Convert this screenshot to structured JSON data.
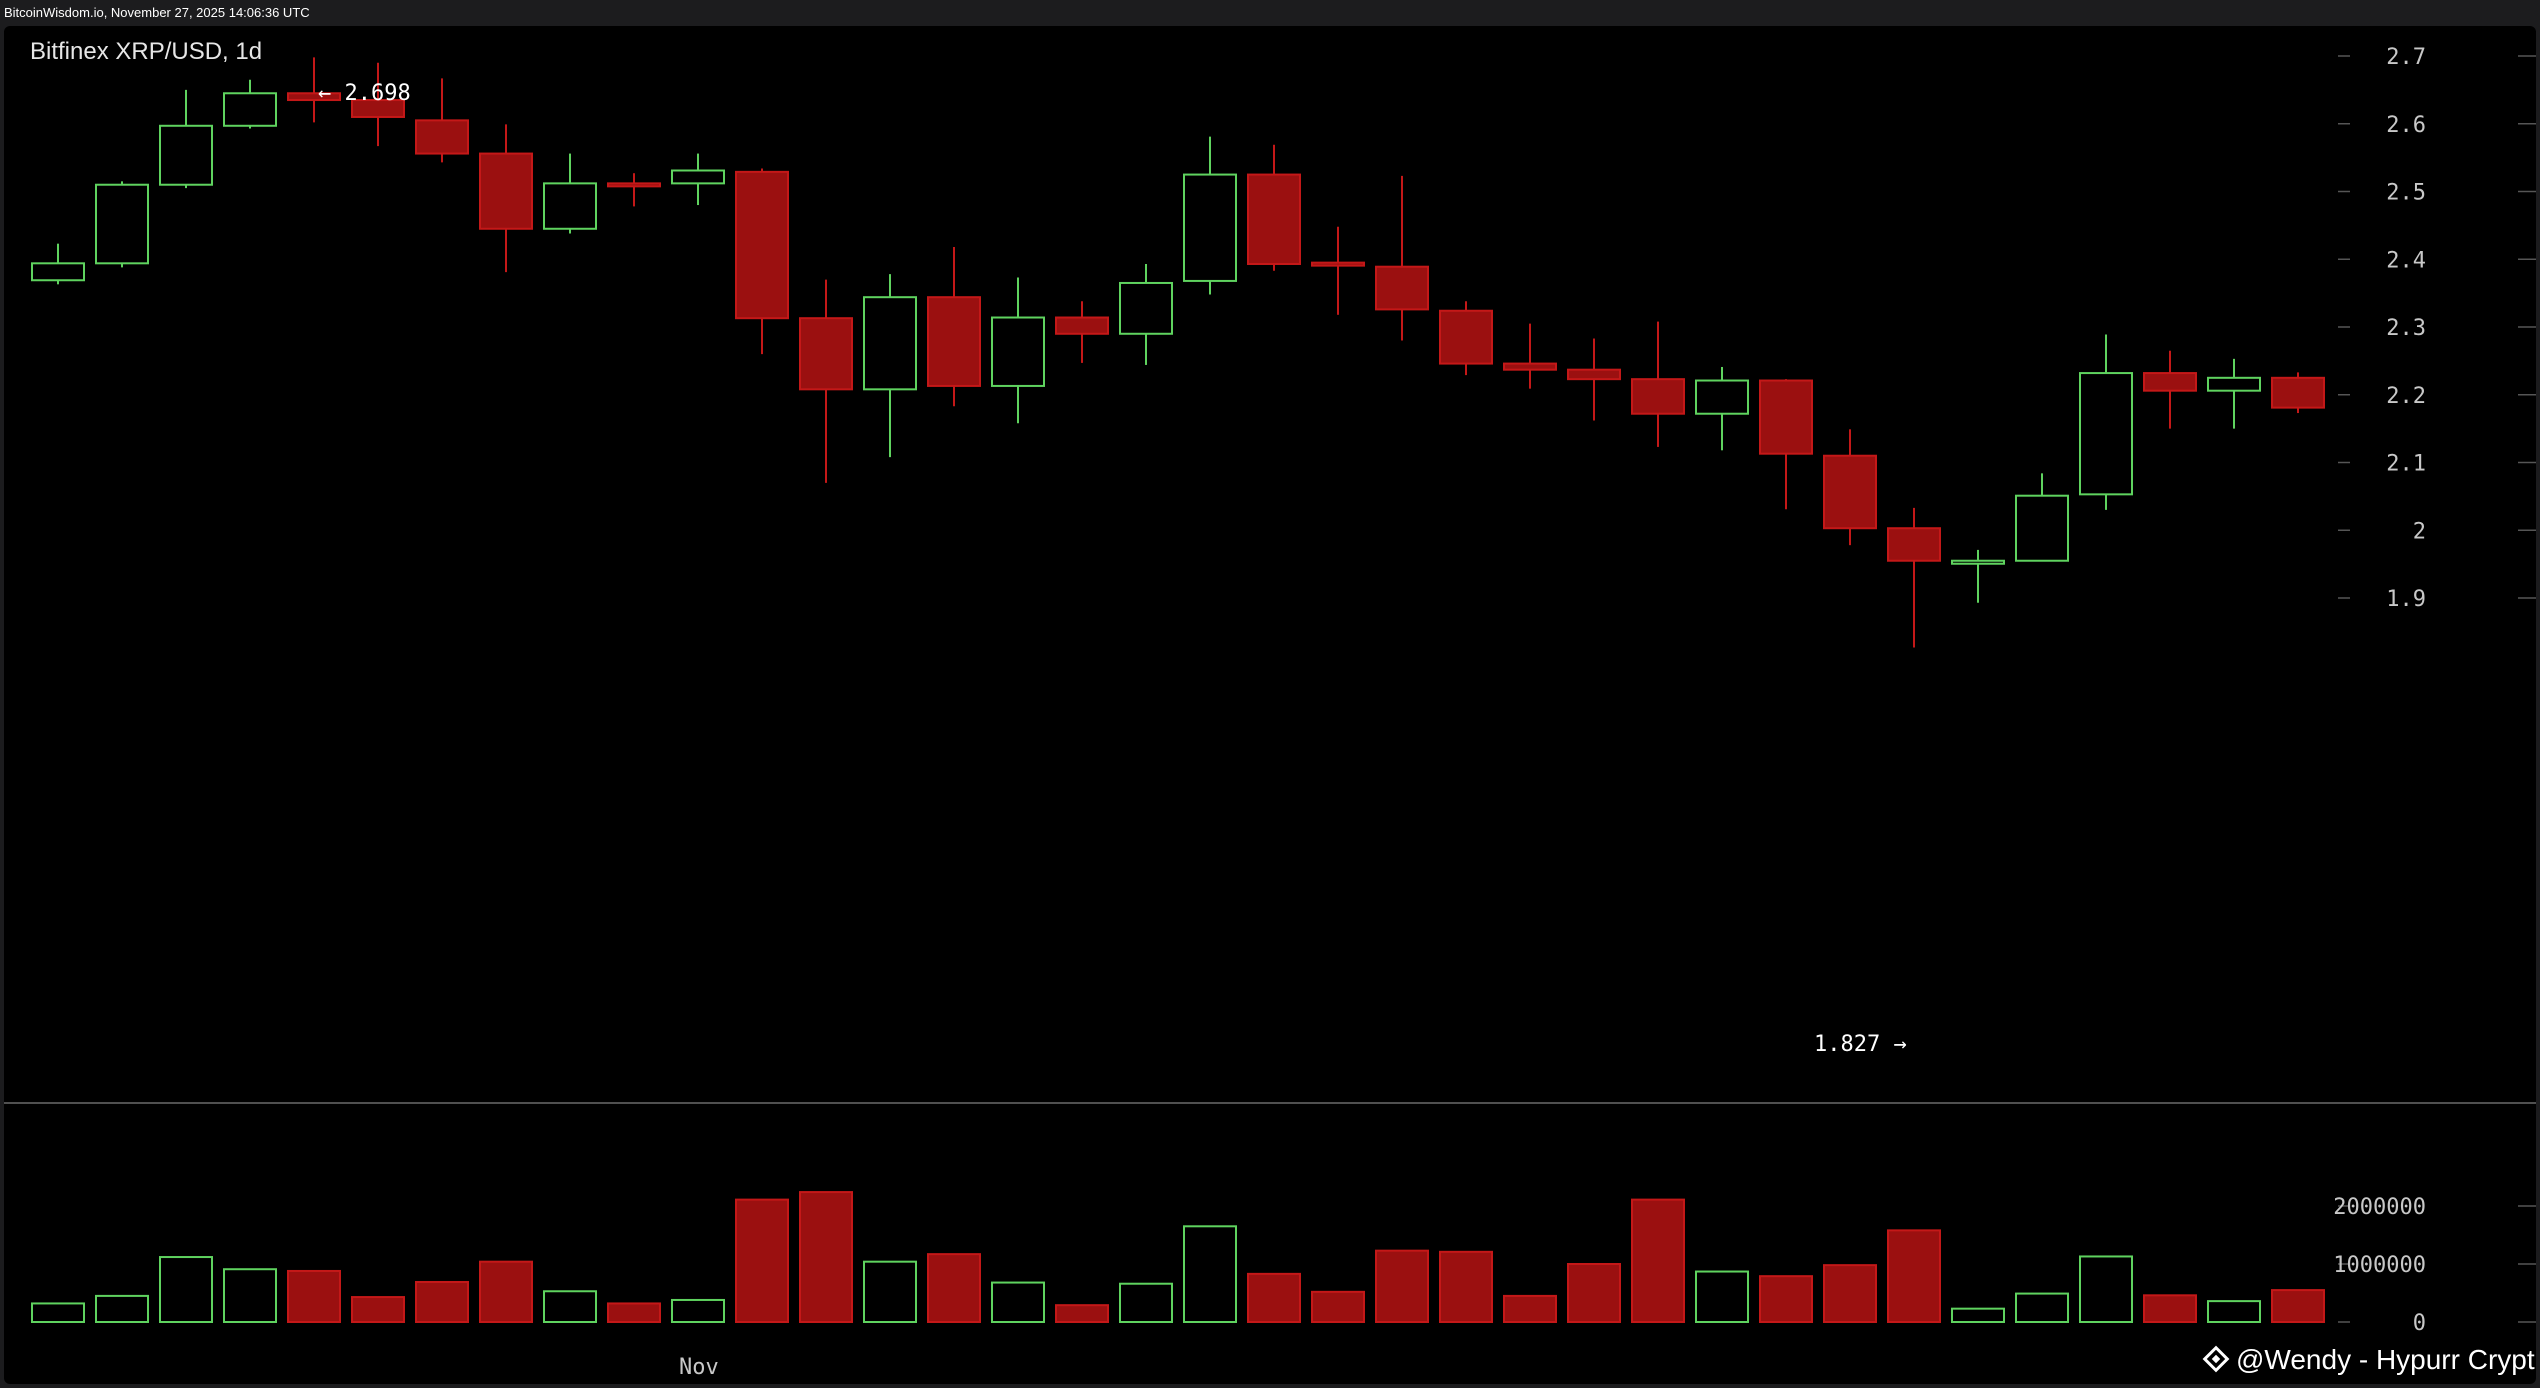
{
  "header": {
    "source": "BitcoinWisdom.io, November 27, 2025 14:06:36 UTC"
  },
  "chart_data": {
    "type": "candlestick",
    "title": "Bitfinex XRP/USD, 1d",
    "y_axis": {
      "ticks": [
        "2.7",
        "2.6",
        "2.5",
        "2.4",
        "2.3",
        "2.2",
        "2.1",
        "2",
        "1.9"
      ],
      "min": 1.8,
      "max": 2.72
    },
    "volume_axis": {
      "ticks": [
        "2000000",
        "1000000",
        "0"
      ],
      "max": 2000000
    },
    "x_axis": {
      "label": "Nov"
    },
    "annotations": {
      "high": "← 2.698",
      "low": "1.827 →"
    },
    "up_color": "#5fd35f",
    "down_color": "#9b1010",
    "candles": [
      {
        "o": 2.369,
        "h": 2.423,
        "l": 2.363,
        "c": 2.394,
        "v": 320000
      },
      {
        "o": 2.394,
        "h": 2.515,
        "l": 2.388,
        "c": 2.51,
        "v": 450000
      },
      {
        "o": 2.51,
        "h": 2.65,
        "l": 2.505,
        "c": 2.597,
        "v": 1120000
      },
      {
        "o": 2.597,
        "h": 2.665,
        "l": 2.593,
        "c": 2.645,
        "v": 910000
      },
      {
        "o": 2.645,
        "h": 2.698,
        "l": 2.602,
        "c": 2.635,
        "v": 880000
      },
      {
        "o": 2.635,
        "h": 2.69,
        "l": 2.567,
        "c": 2.61,
        "v": 430000
      },
      {
        "o": 2.605,
        "h": 2.667,
        "l": 2.543,
        "c": 2.556,
        "v": 690000
      },
      {
        "o": 2.556,
        "h": 2.599,
        "l": 2.381,
        "c": 2.445,
        "v": 1040000
      },
      {
        "o": 2.445,
        "h": 2.556,
        "l": 2.438,
        "c": 2.512,
        "v": 530000
      },
      {
        "o": 2.512,
        "h": 2.527,
        "l": 2.478,
        "c": 2.508,
        "v": 320000
      },
      {
        "o": 2.512,
        "h": 2.556,
        "l": 2.48,
        "c": 2.531,
        "v": 380000
      },
      {
        "o": 2.529,
        "h": 2.534,
        "l": 2.26,
        "c": 2.313,
        "v": 2110000
      },
      {
        "o": 2.313,
        "h": 2.37,
        "l": 2.07,
        "c": 2.208,
        "v": 2240000
      },
      {
        "o": 2.208,
        "h": 2.378,
        "l": 2.108,
        "c": 2.344,
        "v": 1040000
      },
      {
        "o": 2.344,
        "h": 2.418,
        "l": 2.183,
        "c": 2.213,
        "v": 1170000
      },
      {
        "o": 2.213,
        "h": 2.373,
        "l": 2.158,
        "c": 2.314,
        "v": 680000
      },
      {
        "o": 2.314,
        "h": 2.338,
        "l": 2.247,
        "c": 2.29,
        "v": 290000
      },
      {
        "o": 2.29,
        "h": 2.393,
        "l": 2.244,
        "c": 2.365,
        "v": 660000
      },
      {
        "o": 2.368,
        "h": 2.581,
        "l": 2.348,
        "c": 2.525,
        "v": 1650000
      },
      {
        "o": 2.525,
        "h": 2.569,
        "l": 2.383,
        "c": 2.393,
        "v": 830000
      },
      {
        "o": 2.395,
        "h": 2.448,
        "l": 2.318,
        "c": 2.392,
        "v": 520000
      },
      {
        "o": 2.389,
        "h": 2.523,
        "l": 2.28,
        "c": 2.326,
        "v": 1230000
      },
      {
        "o": 2.324,
        "h": 2.338,
        "l": 2.229,
        "c": 2.246,
        "v": 1210000
      },
      {
        "o": 2.246,
        "h": 2.305,
        "l": 2.209,
        "c": 2.237,
        "v": 450000
      },
      {
        "o": 2.237,
        "h": 2.283,
        "l": 2.162,
        "c": 2.223,
        "v": 1000000
      },
      {
        "o": 2.223,
        "h": 2.308,
        "l": 2.123,
        "c": 2.172,
        "v": 2110000
      },
      {
        "o": 2.172,
        "h": 2.241,
        "l": 2.118,
        "c": 2.221,
        "v": 870000
      },
      {
        "o": 2.221,
        "h": 2.223,
        "l": 2.031,
        "c": 2.113,
        "v": 790000
      },
      {
        "o": 2.11,
        "h": 2.149,
        "l": 1.978,
        "c": 2.003,
        "v": 980000
      },
      {
        "o": 2.003,
        "h": 2.033,
        "l": 1.827,
        "c": 1.955,
        "v": 1580000
      },
      {
        "o": 1.955,
        "h": 1.971,
        "l": 1.893,
        "c": 1.955,
        "v": 230000
      },
      {
        "o": 1.955,
        "h": 2.084,
        "l": 1.955,
        "c": 2.051,
        "v": 490000
      },
      {
        "o": 2.053,
        "h": 2.289,
        "l": 2.03,
        "c": 2.232,
        "v": 1130000
      },
      {
        "o": 2.232,
        "h": 2.265,
        "l": 2.15,
        "c": 2.206,
        "v": 460000
      },
      {
        "o": 2.206,
        "h": 2.253,
        "l": 2.15,
        "c": 2.225,
        "v": 360000
      },
      {
        "o": 2.225,
        "h": 2.233,
        "l": 2.173,
        "c": 2.181,
        "v": 550000
      }
    ]
  },
  "watermark": {
    "text": "@Wendy - Hypurr Crypt..."
  }
}
